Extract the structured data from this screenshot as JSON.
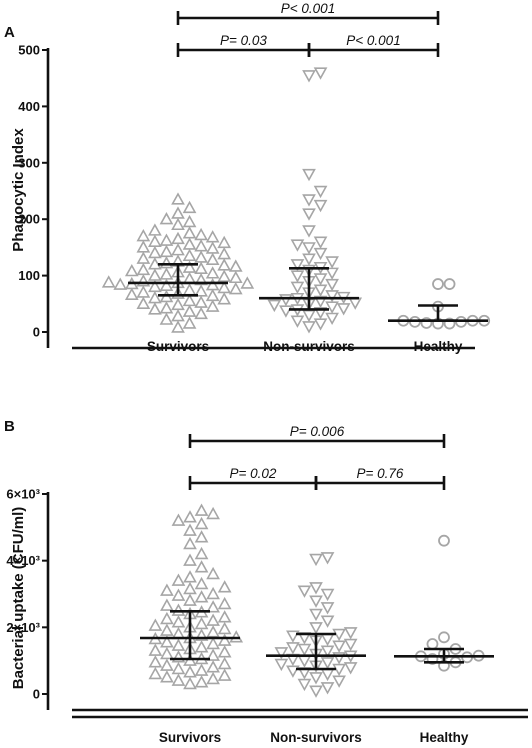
{
  "chart_data": [
    {
      "panel": "A",
      "type": "scatter",
      "ylabel": "Phagocytic Index",
      "categories": [
        "Survivors",
        "Non-survivors",
        "Healthy"
      ],
      "ylim": [
        0,
        500
      ],
      "yticks": [
        "0",
        "100",
        "200",
        "300",
        "400",
        "500"
      ],
      "markers": [
        "triangle-up",
        "triangle-down",
        "circle"
      ],
      "marker_color": "#a6a6a6",
      "summary": [
        {
          "median": 87,
          "q1": 65,
          "q3": 120
        },
        {
          "median": 60,
          "q1": 40,
          "q3": 113
        },
        {
          "median": 20,
          "q1": 20,
          "q3": 47
        }
      ],
      "series": [
        {
          "name": "Survivors",
          "values": [
            235,
            220,
            210,
            200,
            195,
            190,
            180,
            175,
            172,
            170,
            168,
            165,
            162,
            160,
            158,
            155,
            152,
            150,
            148,
            145,
            142,
            140,
            138,
            135,
            132,
            130,
            128,
            125,
            122,
            120,
            118,
            116,
            114,
            112,
            110,
            108,
            106,
            104,
            102,
            100,
            98,
            96,
            94,
            92,
            90,
            88,
            87,
            86,
            85,
            84,
            83,
            82,
            80,
            78,
            76,
            74,
            72,
            70,
            68,
            66,
            64,
            62,
            60,
            58,
            55,
            52,
            50,
            48,
            45,
            42,
            40,
            36,
            32,
            28,
            22,
            15,
            8
          ]
        },
        {
          "name": "Non-survivors",
          "values": [
            460,
            455,
            280,
            250,
            235,
            225,
            210,
            180,
            160,
            155,
            150,
            140,
            130,
            125,
            120,
            115,
            110,
            105,
            100,
            95,
            90,
            85,
            80,
            75,
            70,
            65,
            62,
            60,
            58,
            55,
            52,
            50,
            48,
            45,
            42,
            40,
            38,
            35,
            30,
            25,
            20,
            15,
            10
          ]
        },
        {
          "name": "Healthy",
          "values": [
            85,
            85,
            45,
            20,
            20,
            20,
            18,
            18,
            16,
            15,
            15
          ]
        }
      ],
      "brackets": [
        {
          "from": "Survivors",
          "to": "Healthy",
          "label": "P< 0.001"
        },
        {
          "from": "Survivors",
          "to": "Non-survivors",
          "label": "P= 0.03"
        },
        {
          "from": "Non-survivors",
          "to": "Healthy",
          "label": "P< 0.001"
        }
      ]
    },
    {
      "panel": "B",
      "type": "scatter",
      "ylabel": "Bacterial uptake (CFU/ml)",
      "categories": [
        "Survivors",
        "Non-survivors",
        "Healthy"
      ],
      "ylim": [
        0,
        6000
      ],
      "yticks": [
        "0",
        "2×10³",
        "4×10³",
        "6×10³"
      ],
      "markers": [
        "triangle-up",
        "triangle-down",
        "circle"
      ],
      "marker_color": "#a6a6a6",
      "summary": [
        {
          "median": 1680,
          "q1": 1050,
          "q3": 2480
        },
        {
          "median": 1150,
          "q1": 750,
          "q3": 1800
        },
        {
          "median": 1130,
          "q1": 950,
          "q3": 1350
        }
      ],
      "series": [
        {
          "name": "Survivors",
          "values": [
            5500,
            5400,
            5300,
            5200,
            5100,
            4900,
            4700,
            4500,
            4200,
            4000,
            3800,
            3600,
            3500,
            3400,
            3300,
            3200,
            3150,
            3100,
            3000,
            2950,
            2900,
            2800,
            2700,
            2650,
            2600,
            2500,
            2450,
            2400,
            2300,
            2250,
            2200,
            2150,
            2100,
            2050,
            2000,
            1950,
            1900,
            1850,
            1800,
            1750,
            1700,
            1680,
            1650,
            1600,
            1550,
            1500,
            1450,
            1400,
            1350,
            1300,
            1250,
            1200,
            1150,
            1100,
            1050,
            1000,
            950,
            900,
            850,
            800,
            750,
            700,
            650,
            600,
            550,
            500,
            450,
            400,
            350,
            300
          ]
        },
        {
          "name": "Non-survivors",
          "values": [
            4100,
            4050,
            3200,
            3100,
            3000,
            2800,
            2600,
            2400,
            2200,
            2000,
            1850,
            1800,
            1750,
            1700,
            1650,
            1600,
            1500,
            1450,
            1400,
            1350,
            1300,
            1250,
            1200,
            1150,
            1100,
            1050,
            1000,
            950,
            900,
            850,
            800,
            750,
            700,
            650,
            600,
            500,
            400,
            300,
            200,
            100
          ]
        },
        {
          "name": "Healthy",
          "values": [
            4600,
            1700,
            1500,
            1350,
            1200,
            1150,
            1130,
            1100,
            1050,
            950,
            850
          ]
        }
      ],
      "brackets": [
        {
          "from": "Survivors",
          "to": "Healthy",
          "label": "P= 0.006"
        },
        {
          "from": "Survivors",
          "to": "Non-survivors",
          "label": "P= 0.02"
        },
        {
          "from": "Non-survivors",
          "to": "Healthy",
          "label": "P= 0.76"
        }
      ]
    }
  ]
}
